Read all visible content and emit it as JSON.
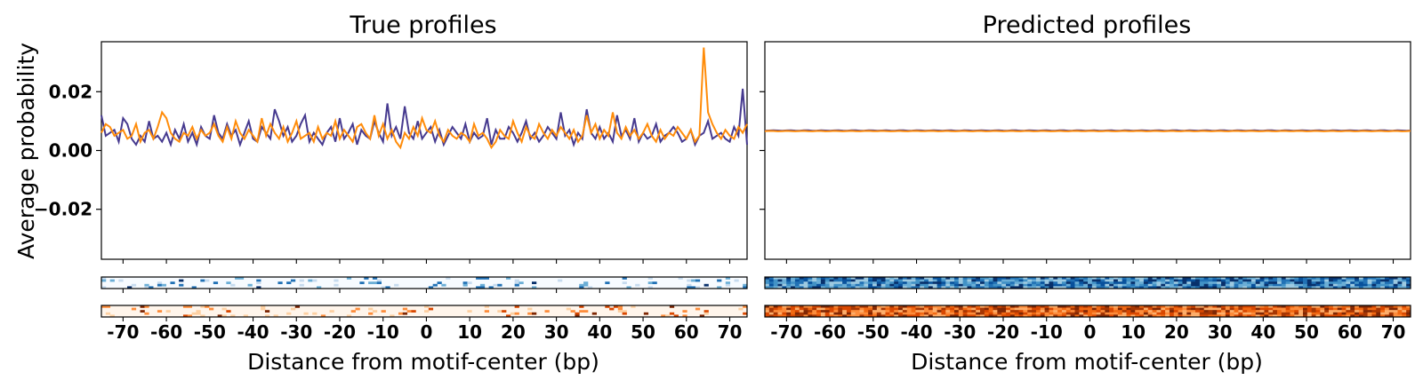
{
  "chart_data": [
    {
      "type": "line",
      "title": "True profiles",
      "xlabel": "Distance from motif-center (bp)",
      "ylabel": "Average probability",
      "xlim": [
        -75,
        74
      ],
      "ylim": [
        -0.037,
        0.037
      ],
      "xticks": [
        -70,
        -60,
        -50,
        -40,
        -30,
        -20,
        -10,
        0,
        10,
        20,
        30,
        40,
        50,
        60,
        70
      ],
      "xtick_labels": [
        "-70",
        "-60",
        "-50",
        "-40",
        "-30",
        "-20",
        "-10",
        "0",
        "10",
        "20",
        "30",
        "40",
        "50",
        "60",
        "70"
      ],
      "yticks": [
        -0.02,
        0.0,
        0.02
      ],
      "ytick_labels": [
        "−0.02",
        "0.00",
        "0.02"
      ],
      "series_colors": [
        "#463a8f",
        "#ff8c0a"
      ],
      "series": [
        {
          "x_start": -75,
          "x_step": 1,
          "values": [
            0.012,
            0.005,
            0.006,
            0.007,
            0.003,
            0.011,
            0.009,
            0.004,
            0.002,
            0.005,
            0.003,
            0.01,
            0.004,
            0.005,
            0.003,
            0.006,
            0.002,
            0.007,
            0.004,
            0.009,
            0.003,
            0.006,
            0.002,
            0.008,
            0.005,
            0.004,
            0.012,
            0.006,
            0.004,
            0.009,
            0.005,
            0.007,
            0.002,
            0.006,
            0.01,
            0.004,
            0.003,
            0.008,
            0.006,
            0.004,
            0.014,
            0.01,
            0.005,
            0.008,
            0.003,
            0.005,
            0.009,
            0.012,
            0.003,
            0.006,
            0.004,
            0.002,
            0.006,
            0.008,
            0.003,
            0.011,
            0.004,
            0.006,
            0.009,
            0.002,
            0.007,
            0.005,
            0.004,
            0.01,
            0.006,
            0.003,
            0.016,
            0.005,
            0.008,
            0.004,
            0.015,
            0.006,
            0.004,
            0.01,
            0.004,
            0.006,
            0.008,
            0.003,
            0.007,
            0.002,
            0.005,
            0.008,
            0.006,
            0.004,
            0.009,
            0.003,
            0.006,
            0.004,
            0.005,
            0.011,
            0.002,
            0.007,
            0.004,
            0.004,
            0.008,
            0.006,
            0.003,
            0.006,
            0.01,
            0.004,
            0.006,
            0.003,
            0.005,
            0.008,
            0.006,
            0.004,
            0.013,
            0.005,
            0.007,
            0.002,
            0.006,
            0.004,
            0.014,
            0.006,
            0.004,
            0.008,
            0.004,
            0.006,
            0.003,
            0.012,
            0.005,
            0.007,
            0.004,
            0.011,
            0.003,
            0.006,
            0.004,
            0.005,
            0.009,
            0.003,
            0.005,
            0.006,
            0.008,
            0.006,
            0.003,
            0.004,
            0.007,
            0.002,
            0.005,
            0.006,
            0.01,
            0.004,
            0.005,
            0.006,
            0.004,
            0.003,
            0.008,
            0.005,
            0.021,
            0.002
          ]
        },
        {
          "x_start": -75,
          "x_step": 1,
          "values": [
            0.006,
            0.009,
            0.008,
            0.005,
            0.006,
            0.007,
            0.004,
            0.005,
            0.009,
            0.003,
            0.006,
            0.007,
            0.004,
            0.008,
            0.013,
            0.011,
            0.006,
            0.004,
            0.003,
            0.006,
            0.005,
            0.008,
            0.004,
            0.007,
            0.005,
            0.006,
            0.009,
            0.005,
            0.003,
            0.008,
            0.004,
            0.01,
            0.006,
            0.004,
            0.007,
            0.005,
            0.003,
            0.011,
            0.005,
            0.009,
            0.006,
            0.004,
            0.008,
            0.003,
            0.006,
            0.01,
            0.004,
            0.005,
            0.006,
            0.003,
            0.008,
            0.004,
            0.006,
            0.005,
            0.01,
            0.004,
            0.007,
            0.005,
            0.003,
            0.008,
            0.009,
            0.006,
            0.004,
            0.012,
            0.005,
            0.009,
            0.004,
            0.007,
            0.003,
            0.001,
            0.006,
            0.004,
            0.008,
            0.005,
            0.011,
            0.007,
            0.006,
            0.01,
            0.005,
            0.003,
            0.007,
            0.005,
            0.004,
            0.006,
            0.005,
            0.003,
            0.009,
            0.005,
            0.006,
            0.004,
            0.001,
            0.003,
            0.007,
            0.005,
            0.004,
            0.01,
            0.006,
            0.003,
            0.008,
            0.005,
            0.004,
            0.009,
            0.006,
            0.004,
            0.007,
            0.005,
            0.008,
            0.006,
            0.004,
            0.007,
            0.003,
            0.005,
            0.012,
            0.006,
            0.009,
            0.004,
            0.007,
            0.005,
            0.013,
            0.006,
            0.004,
            0.008,
            0.005,
            0.007,
            0.004,
            0.006,
            0.009,
            0.005,
            0.003,
            0.007,
            0.004,
            0.006,
            0.005,
            0.008,
            0.006,
            0.004,
            0.007,
            0.003,
            0.005,
            0.035,
            0.013,
            0.009,
            0.006,
            0.004,
            0.007,
            0.005,
            0.004,
            0.008,
            0.006,
            0.009
          ]
        }
      ]
    },
    {
      "type": "line",
      "title": "Predicted profiles",
      "xlabel": "Distance from motif-center (bp)",
      "xlim": [
        -75,
        74
      ],
      "ylim": [
        -0.037,
        0.037
      ],
      "xticks": [
        -70,
        -60,
        -50,
        -40,
        -30,
        -20,
        -10,
        0,
        10,
        20,
        30,
        40,
        50,
        60,
        70
      ],
      "xtick_labels": [
        "-70",
        "-60",
        "-50",
        "-40",
        "-30",
        "-20",
        "-10",
        "0",
        "10",
        "20",
        "30",
        "40",
        "50",
        "60",
        "70"
      ],
      "series_colors": [
        "#463a8f",
        "#ff8c0a"
      ],
      "series": [
        {
          "x_start": -75,
          "x_step": 1,
          "flat_value": 0.0068
        },
        {
          "x_start": -75,
          "x_step": 1,
          "flat_value": 0.0066
        }
      ]
    }
  ],
  "heatmaps": [
    {
      "panel": "true",
      "strand": "positive",
      "cmap": "blues",
      "level": "sparse"
    },
    {
      "panel": "true",
      "strand": "negative",
      "cmap": "oranges",
      "level": "sparse"
    },
    {
      "panel": "predicted",
      "strand": "positive",
      "cmap": "blues",
      "level": "dense"
    },
    {
      "panel": "predicted",
      "strand": "negative",
      "cmap": "oranges",
      "level": "dense"
    }
  ]
}
